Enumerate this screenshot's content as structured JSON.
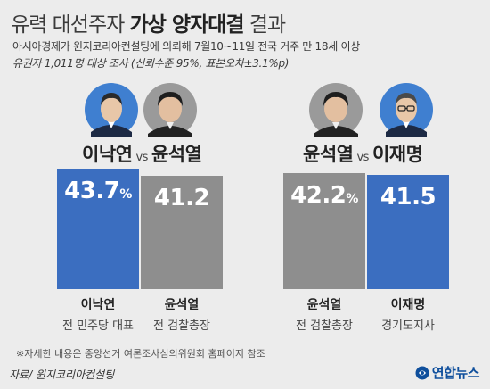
{
  "header": {
    "title_prefix": "유력 대선주자",
    "title_emphasis": "가상 양자대결",
    "title_suffix": "결과",
    "subtitle_line1": "아시아경제가 윈지코리아컨설팅에 의뢰해 7월10~11일 전국 거주 만 18세 이상",
    "subtitle_line2": "유권자 1,011명 대상 조사 (신뢰수준 95%, 표본오차±3.1%p)"
  },
  "matchups": [
    {
      "name_a": "이낙연",
      "vs": "vs",
      "name_b": "윤석열"
    },
    {
      "name_a": "윤석열",
      "vs": "vs",
      "name_b": "이재명"
    }
  ],
  "candidates": [
    {
      "name": "이낙연",
      "role": "전 민주당 대표",
      "value_label": "43.7",
      "unit": "%"
    },
    {
      "name": "윤석열",
      "role": "전 검찰총장",
      "value_label": "41.2",
      "unit": ""
    },
    {
      "name": "윤석열",
      "role": "전 검찰총장",
      "value_label": "42.2",
      "unit": "%"
    },
    {
      "name": "이재명",
      "role": "경기도지사",
      "value_label": "41.5",
      "unit": ""
    }
  ],
  "footer": {
    "note": "※자세한 내용은 중앙선거 여론조사심의위원회 홈페이지 참조",
    "source": "자료/ 윈지코리아컨설팅",
    "brand": "연합뉴스"
  },
  "colors": {
    "blue_bar": "#3b6ec0",
    "gray_bar": "#8e8e8e",
    "background": "#ececec"
  },
  "chart_data": {
    "type": "bar",
    "title": "유력 대선주자 가상 양자대결 결과",
    "unit": "%",
    "groups": [
      {
        "label": "이낙연 vs 윤석열",
        "categories": [
          "이낙연",
          "윤석열"
        ],
        "values": [
          43.7,
          41.2
        ],
        "colors": [
          "#3b6ec0",
          "#8e8e8e"
        ]
      },
      {
        "label": "윤석열 vs 이재명",
        "categories": [
          "윤석열",
          "이재명"
        ],
        "values": [
          42.2,
          41.5
        ],
        "colors": [
          "#8e8e8e",
          "#3b6ec0"
        ]
      }
    ]
  }
}
